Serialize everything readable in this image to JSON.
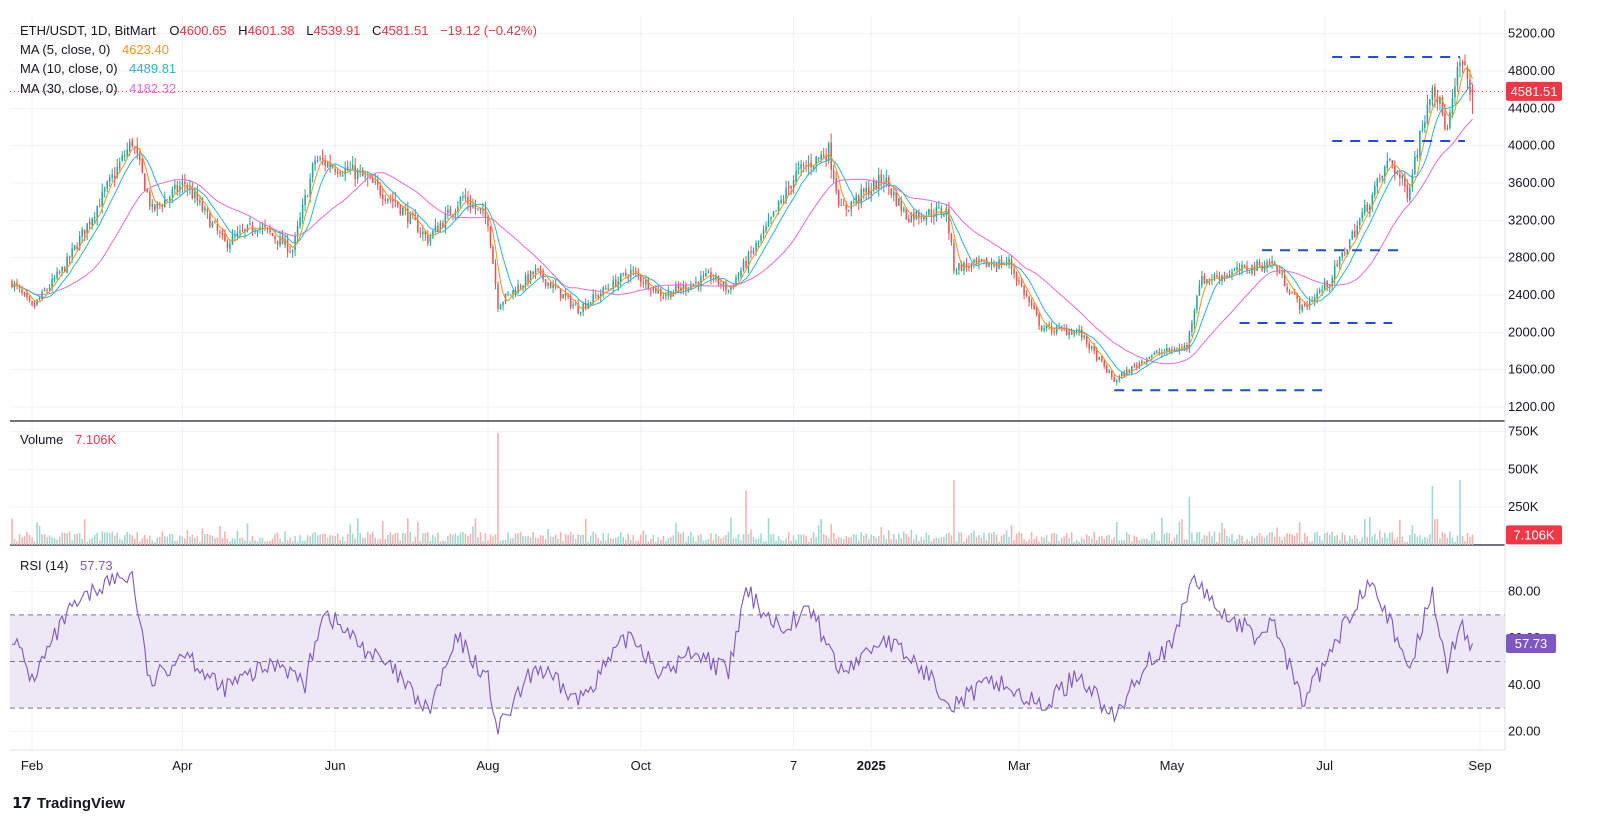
{
  "legend": {
    "symbol": "ETH/USDT, 1D, BitMart",
    "ohlc": {
      "O": "4600.65",
      "H": "4601.38",
      "L": "4539.91",
      "C": "4581.51",
      "change": "−19.12 (−0.42%)"
    },
    "ma5_label": "MA (5, close, 0)",
    "ma5_value": "4623.40",
    "ma10_label": "MA (10, close, 0)",
    "ma10_value": "4489.81",
    "ma30_label": "MA (30, close, 0)",
    "ma30_value": "4182.32",
    "volume_label": "Volume",
    "volume_value": "7.106K",
    "rsi_label": "RSI (14)",
    "rsi_value": "57.73"
  },
  "colors": {
    "up": "#26a69a",
    "down": "#ef5350",
    "ma5": "#f7931a",
    "ma10": "#2bb5d8",
    "ma30": "#e86bd8",
    "rsi": "#7e57c2",
    "rsi_band": "#ede7f6",
    "levels": "#1e4fd8",
    "price_tag": "#f23645",
    "rsi_tag": "#7e57c2"
  },
  "price_tag": "4581.51",
  "volume_tag": "7.106K",
  "rsi_tag": "57.73",
  "footer": {
    "brand": "TradingView",
    "logo_icon": "tradingview-logo-icon"
  },
  "chart_data": {
    "type": "candlestick",
    "symbol": "ETH/USDT",
    "interval": "1D",
    "exchange": "BitMart",
    "x_range": [
      "2024-01-24",
      "2025-08-29"
    ],
    "time_axis_labels": [
      {
        "date": "2024-02-01",
        "label": "Feb"
      },
      {
        "date": "2024-04-01",
        "label": "Apr"
      },
      {
        "date": "2024-06-01",
        "label": "Jun"
      },
      {
        "date": "2024-08-01",
        "label": "Aug"
      },
      {
        "date": "2024-10-01",
        "label": "Oct"
      },
      {
        "date": "2024-12-01",
        "label": "7"
      },
      {
        "date": "2025-01-01",
        "label": "2025"
      },
      {
        "date": "2025-03-01",
        "label": "Mar"
      },
      {
        "date": "2025-05-01",
        "label": "May"
      },
      {
        "date": "2025-07-01",
        "label": "Jul"
      },
      {
        "date": "2025-09-01",
        "label": "Sep"
      }
    ],
    "price_axis": {
      "ticks": [
        1200,
        1600,
        2000,
        2400,
        2800,
        3200,
        3600,
        4000,
        4400,
        4800,
        5200
      ],
      "ylim": [
        1050,
        5400
      ]
    },
    "price_path": [
      {
        "date": "2024-01-24",
        "close": 2540
      },
      {
        "date": "2024-02-01",
        "close": 2260
      },
      {
        "date": "2024-02-14",
        "close": 2700
      },
      {
        "date": "2024-02-28",
        "close": 3400
      },
      {
        "date": "2024-03-12",
        "close": 4050
      },
      {
        "date": "2024-03-20",
        "close": 3300
      },
      {
        "date": "2024-04-02",
        "close": 3600
      },
      {
        "date": "2024-04-18",
        "close": 2950
      },
      {
        "date": "2024-05-01",
        "close": 3150
      },
      {
        "date": "2024-05-15",
        "close": 2880
      },
      {
        "date": "2024-05-24",
        "close": 3850
      },
      {
        "date": "2024-06-10",
        "close": 3700
      },
      {
        "date": "2024-06-25",
        "close": 3400
      },
      {
        "date": "2024-07-08",
        "close": 3000
      },
      {
        "date": "2024-07-22",
        "close": 3450
      },
      {
        "date": "2024-08-01",
        "close": 3200
      },
      {
        "date": "2024-08-05",
        "close": 2300
      },
      {
        "date": "2024-08-20",
        "close": 2650
      },
      {
        "date": "2024-09-06",
        "close": 2250
      },
      {
        "date": "2024-09-27",
        "close": 2650
      },
      {
        "date": "2024-10-10",
        "close": 2400
      },
      {
        "date": "2024-10-29",
        "close": 2600
      },
      {
        "date": "2024-11-05",
        "close": 2450
      },
      {
        "date": "2024-11-20",
        "close": 3100
      },
      {
        "date": "2024-12-02",
        "close": 3700
      },
      {
        "date": "2024-12-15",
        "close": 3950
      },
      {
        "date": "2024-12-20",
        "close": 3300
      },
      {
        "date": "2025-01-06",
        "close": 3650
      },
      {
        "date": "2025-01-15",
        "close": 3250
      },
      {
        "date": "2025-01-31",
        "close": 3300
      },
      {
        "date": "2025-02-03",
        "close": 2700
      },
      {
        "date": "2025-02-25",
        "close": 2750
      },
      {
        "date": "2025-03-10",
        "close": 2050
      },
      {
        "date": "2025-03-25",
        "close": 2000
      },
      {
        "date": "2025-04-08",
        "close": 1480
      },
      {
        "date": "2025-04-22",
        "close": 1750
      },
      {
        "date": "2025-05-07",
        "close": 1850
      },
      {
        "date": "2025-05-12",
        "close": 2550
      },
      {
        "date": "2025-06-10",
        "close": 2750
      },
      {
        "date": "2025-06-22",
        "close": 2250
      },
      {
        "date": "2025-07-03",
        "close": 2550
      },
      {
        "date": "2025-07-15",
        "close": 3200
      },
      {
        "date": "2025-07-27",
        "close": 3850
      },
      {
        "date": "2025-08-03",
        "close": 3500
      },
      {
        "date": "2025-08-13",
        "close": 4700
      },
      {
        "date": "2025-08-19",
        "close": 4150
      },
      {
        "date": "2025-08-24",
        "close": 4900
      },
      {
        "date": "2025-08-29",
        "close": 4581.51
      }
    ],
    "ma_last": {
      "ma5": 4623.4,
      "ma10": 4489.81,
      "ma30": 4182.32
    },
    "last_ohlc": {
      "open": 4600.65,
      "high": 4601.38,
      "low": 4539.91,
      "close": 4581.51
    },
    "horizontal_levels": [
      {
        "price": 4950,
        "from": "2025-07-04",
        "to": "2025-08-24"
      },
      {
        "price": 4050,
        "from": "2025-07-04",
        "to": "2025-08-26"
      },
      {
        "price": 2880,
        "from": "2025-06-06",
        "to": "2025-08-02"
      },
      {
        "price": 2100,
        "from": "2025-05-28",
        "to": "2025-07-28"
      },
      {
        "price": 1380,
        "from": "2025-04-08",
        "to": "2025-06-30"
      }
    ],
    "volume": {
      "axis_ticks": [
        {
          "value": 250000,
          "label": "250K"
        },
        {
          "value": 500000,
          "label": "500K"
        },
        {
          "value": 750000,
          "label": "750K"
        }
      ],
      "ylim": [
        0,
        780000
      ],
      "last": 7106,
      "spikes": [
        {
          "date": "2024-08-05",
          "value": 740000
        },
        {
          "date": "2025-02-03",
          "value": 430000
        },
        {
          "date": "2025-08-24",
          "value": 430000
        },
        {
          "date": "2025-08-13",
          "value": 390000
        },
        {
          "date": "2024-11-12",
          "value": 360000
        },
        {
          "date": "2025-05-08",
          "value": 320000
        }
      ]
    },
    "rsi": {
      "period": 14,
      "ylim": [
        12,
        100
      ],
      "axis_ticks": [
        20,
        40,
        60,
        80
      ],
      "band": [
        30,
        70
      ],
      "mid": 50,
      "last": 57.73,
      "path": [
        {
          "date": "2024-01-24",
          "value": 62
        },
        {
          "date": "2024-02-01",
          "value": 42
        },
        {
          "date": "2024-02-15",
          "value": 70
        },
        {
          "date": "2024-03-01",
          "value": 84
        },
        {
          "date": "2024-03-12",
          "value": 87
        },
        {
          "date": "2024-03-19",
          "value": 40
        },
        {
          "date": "2024-04-02",
          "value": 55
        },
        {
          "date": "2024-04-16",
          "value": 38
        },
        {
          "date": "2024-05-10",
          "value": 50
        },
        {
          "date": "2024-05-20",
          "value": 40
        },
        {
          "date": "2024-05-27",
          "value": 72
        },
        {
          "date": "2024-06-10",
          "value": 58
        },
        {
          "date": "2024-06-25",
          "value": 45
        },
        {
          "date": "2024-07-08",
          "value": 28
        },
        {
          "date": "2024-07-20",
          "value": 60
        },
        {
          "date": "2024-08-01",
          "value": 42
        },
        {
          "date": "2024-08-05",
          "value": 20
        },
        {
          "date": "2024-08-20",
          "value": 48
        },
        {
          "date": "2024-09-06",
          "value": 33
        },
        {
          "date": "2024-09-27",
          "value": 62
        },
        {
          "date": "2024-10-10",
          "value": 44
        },
        {
          "date": "2024-10-22",
          "value": 55
        },
        {
          "date": "2024-11-05",
          "value": 45
        },
        {
          "date": "2024-11-12",
          "value": 80
        },
        {
          "date": "2024-11-25",
          "value": 65
        },
        {
          "date": "2024-12-08",
          "value": 72
        },
        {
          "date": "2024-12-20",
          "value": 45
        },
        {
          "date": "2025-01-06",
          "value": 60
        },
        {
          "date": "2025-01-20",
          "value": 48
        },
        {
          "date": "2025-02-03",
          "value": 32
        },
        {
          "date": "2025-02-20",
          "value": 42
        },
        {
          "date": "2025-03-10",
          "value": 30
        },
        {
          "date": "2025-03-25",
          "value": 45
        },
        {
          "date": "2025-04-08",
          "value": 25
        },
        {
          "date": "2025-04-22",
          "value": 52
        },
        {
          "date": "2025-05-01",
          "value": 55
        },
        {
          "date": "2025-05-09",
          "value": 86
        },
        {
          "date": "2025-05-20",
          "value": 72
        },
        {
          "date": "2025-06-05",
          "value": 60
        },
        {
          "date": "2025-06-10",
          "value": 68
        },
        {
          "date": "2025-06-22",
          "value": 33
        },
        {
          "date": "2025-07-03",
          "value": 52
        },
        {
          "date": "2025-07-12",
          "value": 72
        },
        {
          "date": "2025-07-20",
          "value": 88
        },
        {
          "date": "2025-08-03",
          "value": 45
        },
        {
          "date": "2025-08-13",
          "value": 80
        },
        {
          "date": "2025-08-19",
          "value": 48
        },
        {
          "date": "2025-08-24",
          "value": 65
        },
        {
          "date": "2025-08-29",
          "value": 57.73
        }
      ]
    }
  }
}
